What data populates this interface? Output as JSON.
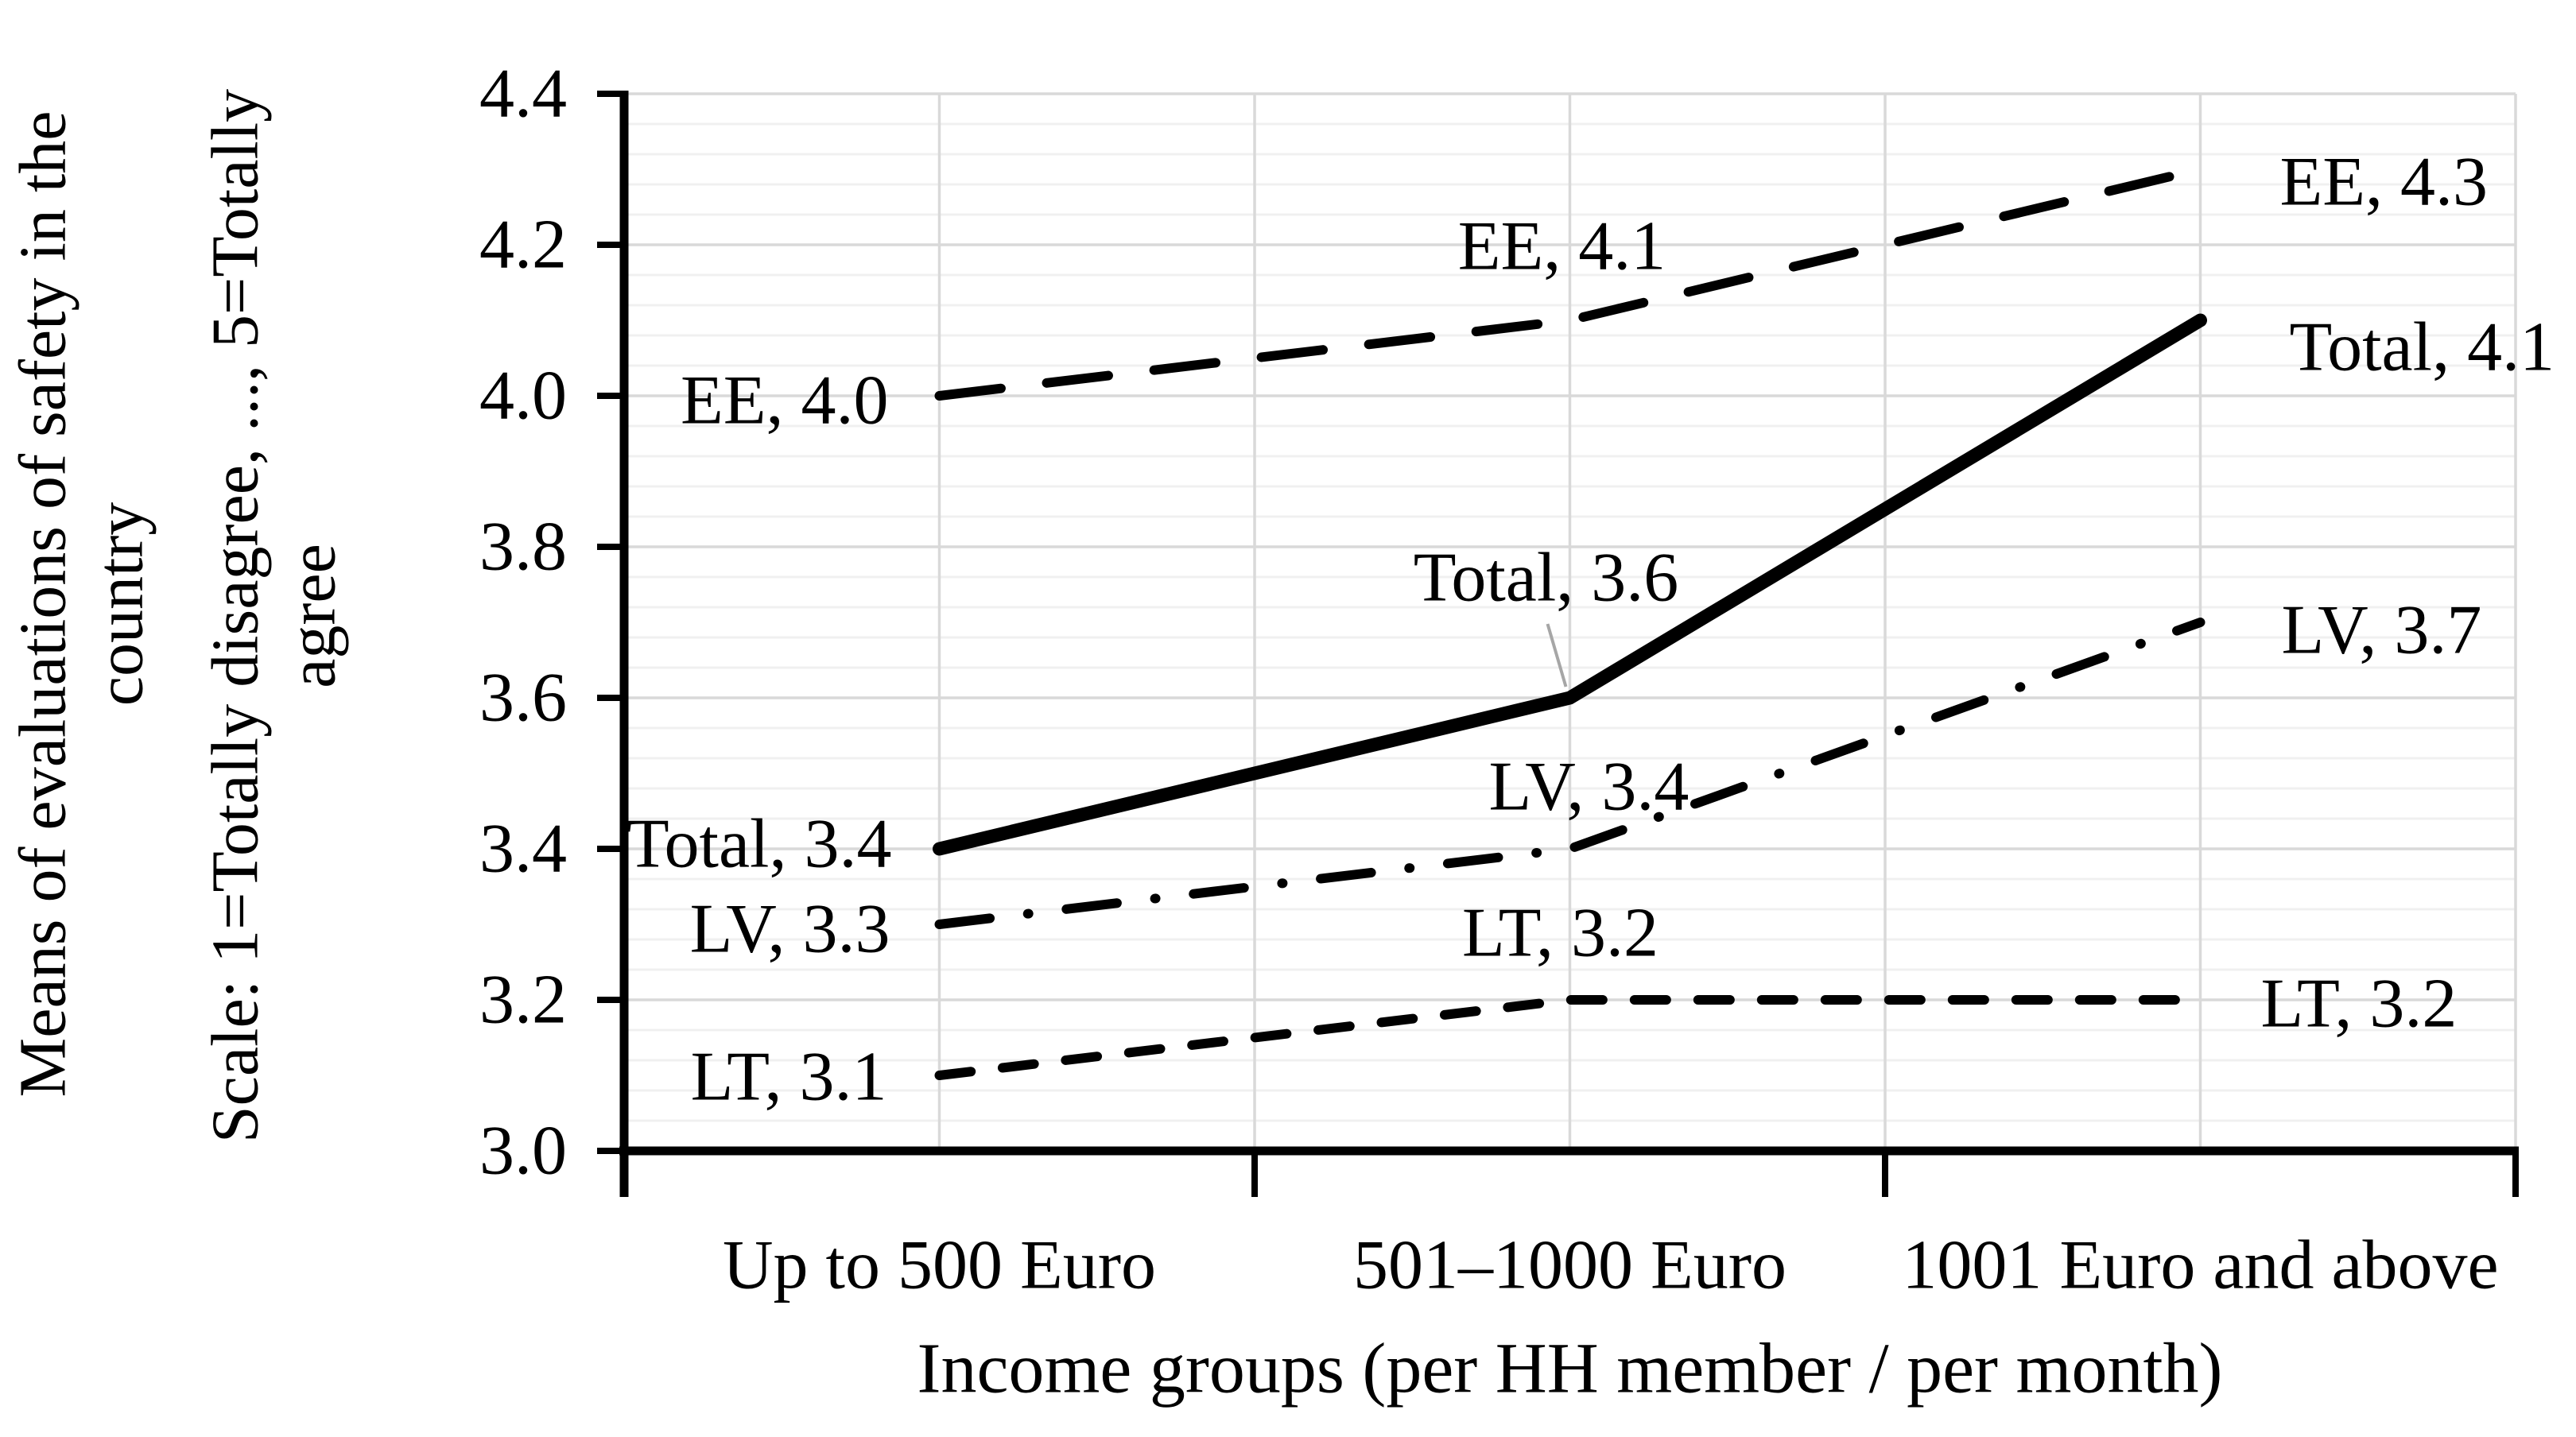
{
  "figure": {
    "background": "#ffffff",
    "text_color": "#000000"
  },
  "y_axis_title": {
    "line1": "Means of evaluations of safety in the",
    "line2": "country",
    "line3": "Scale: 1=Totally disagree, ..., 5=Totally",
    "line4": "agree"
  },
  "x_axis_title": "Income groups (per HH member / per month)",
  "chart_data": {
    "type": "line",
    "categories": [
      "Up to 500 Euro",
      "501–1000 Euro",
      "1001 Euro and above"
    ],
    "series": [
      {
        "name": "EE",
        "line_style": "long-dash",
        "values": [
          4.0,
          4.1,
          4.3
        ]
      },
      {
        "name": "Total",
        "line_style": "solid-thick",
        "values": [
          3.4,
          3.6,
          4.1
        ]
      },
      {
        "name": "LV",
        "line_style": "dash-dot",
        "values": [
          3.3,
          3.4,
          3.7
        ]
      },
      {
        "name": "LT",
        "line_style": "short-dash",
        "values": [
          3.1,
          3.2,
          3.2
        ]
      }
    ],
    "point_labels": [
      {
        "text": "EE, 4.0",
        "series": "EE",
        "point": 0,
        "placement": "left"
      },
      {
        "text": "EE, 4.1",
        "series": "EE",
        "point": 1,
        "placement": "above"
      },
      {
        "text": "EE, 4.3",
        "series": "EE",
        "point": 2,
        "placement": "right"
      },
      {
        "text": "Total, 3.4",
        "series": "Total",
        "point": 0,
        "placement": "left"
      },
      {
        "text": "Total, 3.6",
        "series": "Total",
        "point": 1,
        "placement": "above-with-leader"
      },
      {
        "text": "Total, 4.1",
        "series": "Total",
        "point": 2,
        "placement": "right"
      },
      {
        "text": "LV, 3.3",
        "series": "LV",
        "point": 0,
        "placement": "left"
      },
      {
        "text": "LV, 3.4",
        "series": "LV",
        "point": 1,
        "placement": "above"
      },
      {
        "text": "LV, 3.7",
        "series": "LV",
        "point": 2,
        "placement": "right"
      },
      {
        "text": "LT, 3.1",
        "series": "LT",
        "point": 0,
        "placement": "left"
      },
      {
        "text": "LT, 3.2",
        "series": "LT",
        "point": 1,
        "placement": "above"
      },
      {
        "text": "LT, 3.2",
        "series": "LT",
        "point": 2,
        "placement": "right"
      }
    ],
    "ylim": [
      3.0,
      4.4
    ],
    "y_major_step": 0.2,
    "y_minor_step": 0.04,
    "y_tick_labels": [
      "4.4",
      "4.2",
      "4.0",
      "3.8",
      "3.6",
      "3.4",
      "3.2",
      "3.0"
    ],
    "grid": {
      "major_color": "#d9d9d9",
      "minor_color": "#f0f0f0",
      "vertical_color": "#d9d9d9",
      "grid_on": true
    },
    "legend_position": "none (labels on chart)",
    "axis_color": "#000000",
    "series_color": "#000000",
    "leader_line_color": "#a6a6a6"
  }
}
